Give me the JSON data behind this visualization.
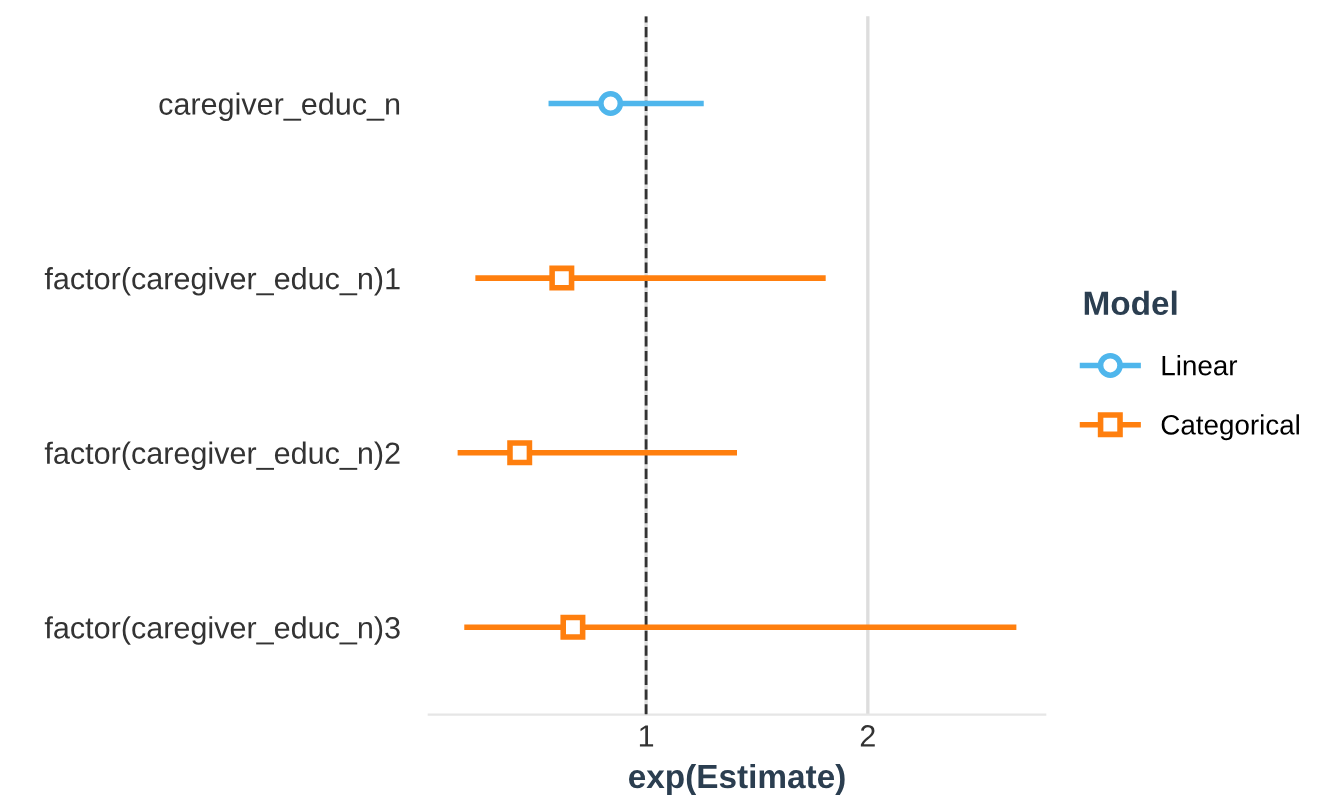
{
  "chart_data": {
    "type": "scatter",
    "orientation": "horizontal",
    "xlabel": "exp(Estimate)",
    "legend_title": "Model",
    "legend": "right",
    "grid": "x",
    "categories": [
      "caregiver_educ_n",
      "factor(caregiver_educ_n)1",
      "factor(caregiver_educ_n)2",
      "factor(caregiver_educ_n)3"
    ],
    "series": [
      {
        "name": "Linear",
        "color": "#4fb6ec",
        "marker": "circle",
        "values": [
          0.84,
          null,
          null,
          null
        ],
        "errors": [
          [
            0.56,
            1.26
          ],
          null,
          null,
          null
        ]
      },
      {
        "name": "Categorical",
        "color": "#ff7f0e",
        "marker": "square",
        "values": [
          null,
          0.62,
          0.43,
          0.67
        ],
        "errors": [
          null,
          [
            0.23,
            1.81
          ],
          [
            0.15,
            1.41
          ],
          [
            0.18,
            2.67
          ]
        ]
      }
    ],
    "xlim": [
      0.02,
      2.8
    ],
    "xticks": [
      1,
      2
    ],
    "ref_lines": [
      {
        "axis": "x",
        "value": 1,
        "color": "#333333",
        "line_style": "dashed"
      }
    ]
  }
}
